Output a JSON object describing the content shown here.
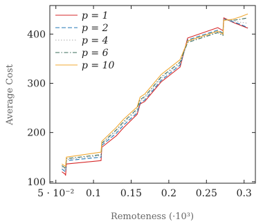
{
  "chart_data": {
    "type": "line",
    "xlabel": "Remoteness (·10³)",
    "ylabel": "Average Cost",
    "xlim": [
      0.042,
      0.315
    ],
    "ylim": [
      97,
      458
    ],
    "x_ticks": [
      {
        "value": 0.05,
        "label": "5 · 10⁻²"
      },
      {
        "value": 0.1,
        "label": "0.1"
      },
      {
        "value": 0.15,
        "label": "0.15"
      },
      {
        "value": 0.2,
        "label": "0.2"
      },
      {
        "value": 0.25,
        "label": "0.25"
      },
      {
        "value": 0.3,
        "label": "0.3"
      }
    ],
    "y_ticks": [
      {
        "value": 100,
        "label": "100"
      },
      {
        "value": 200,
        "label": "200"
      },
      {
        "value": 300,
        "label": "300"
      },
      {
        "value": 400,
        "label": "400"
      }
    ],
    "legend_position": "top-left",
    "series": [
      {
        "name": "p = 1",
        "color": "#d62728",
        "dash": "solid",
        "points": [
          [
            0.058,
            120
          ],
          [
            0.062,
            116
          ],
          [
            0.063,
            113
          ],
          [
            0.064,
            136
          ],
          [
            0.11,
            143
          ],
          [
            0.111,
            170
          ],
          [
            0.13,
            193
          ],
          [
            0.14,
            210
          ],
          [
            0.158,
            237
          ],
          [
            0.162,
            258
          ],
          [
            0.168,
            263
          ],
          [
            0.19,
            303
          ],
          [
            0.215,
            333
          ],
          [
            0.225,
            392
          ],
          [
            0.265,
            413
          ],
          [
            0.272,
            407
          ],
          [
            0.273,
            433
          ],
          [
            0.285,
            424
          ],
          [
            0.295,
            418
          ],
          [
            0.305,
            412
          ]
        ]
      },
      {
        "name": "p = 2",
        "color": "#1f77b4",
        "dash": "6,3",
        "points": [
          [
            0.058,
            126
          ],
          [
            0.063,
            120
          ],
          [
            0.064,
            143
          ],
          [
            0.11,
            150
          ],
          [
            0.111,
            174
          ],
          [
            0.13,
            198
          ],
          [
            0.14,
            215
          ],
          [
            0.158,
            240
          ],
          [
            0.162,
            260
          ],
          [
            0.168,
            266
          ],
          [
            0.19,
            306
          ],
          [
            0.215,
            337
          ],
          [
            0.225,
            388
          ],
          [
            0.265,
            408
          ],
          [
            0.272,
            402
          ],
          [
            0.273,
            431
          ],
          [
            0.285,
            425
          ],
          [
            0.295,
            420
          ],
          [
            0.305,
            413
          ]
        ]
      },
      {
        "name": "p = 4",
        "color": "#aaaaaa",
        "dash": "1.5,2.5",
        "points": [
          [
            0.058,
            130
          ],
          [
            0.063,
            124
          ],
          [
            0.064,
            145
          ],
          [
            0.11,
            153
          ],
          [
            0.111,
            176
          ],
          [
            0.13,
            202
          ],
          [
            0.14,
            219
          ],
          [
            0.158,
            244
          ],
          [
            0.162,
            264
          ],
          [
            0.168,
            270
          ],
          [
            0.19,
            310
          ],
          [
            0.215,
            340
          ],
          [
            0.225,
            385
          ],
          [
            0.265,
            405
          ],
          [
            0.272,
            399
          ],
          [
            0.273,
            430
          ],
          [
            0.285,
            427
          ],
          [
            0.295,
            424
          ],
          [
            0.305,
            422
          ]
        ]
      },
      {
        "name": "p = 6",
        "color": "#3a6b5a",
        "dash": "6,2.5,1.5,2.5",
        "points": [
          [
            0.058,
            133
          ],
          [
            0.063,
            127
          ],
          [
            0.064,
            147
          ],
          [
            0.11,
            155
          ],
          [
            0.111,
            178
          ],
          [
            0.13,
            205
          ],
          [
            0.14,
            222
          ],
          [
            0.158,
            248
          ],
          [
            0.162,
            267
          ],
          [
            0.168,
            273
          ],
          [
            0.19,
            313
          ],
          [
            0.215,
            343
          ],
          [
            0.225,
            383
          ],
          [
            0.265,
            403
          ],
          [
            0.272,
            397
          ],
          [
            0.273,
            429
          ],
          [
            0.285,
            428
          ],
          [
            0.295,
            430
          ],
          [
            0.305,
            433
          ]
        ]
      },
      {
        "name": "p = 10",
        "color": "#f0a830",
        "dash": "solid",
        "points": [
          [
            0.058,
            136
          ],
          [
            0.063,
            131
          ],
          [
            0.064,
            150
          ],
          [
            0.11,
            160
          ],
          [
            0.111,
            182
          ],
          [
            0.13,
            210
          ],
          [
            0.14,
            227
          ],
          [
            0.158,
            252
          ],
          [
            0.162,
            272
          ],
          [
            0.168,
            278
          ],
          [
            0.19,
            318
          ],
          [
            0.215,
            348
          ],
          [
            0.225,
            386
          ],
          [
            0.265,
            406
          ],
          [
            0.272,
            400
          ],
          [
            0.273,
            428
          ],
          [
            0.285,
            430
          ],
          [
            0.295,
            435
          ],
          [
            0.305,
            441
          ]
        ]
      }
    ]
  }
}
